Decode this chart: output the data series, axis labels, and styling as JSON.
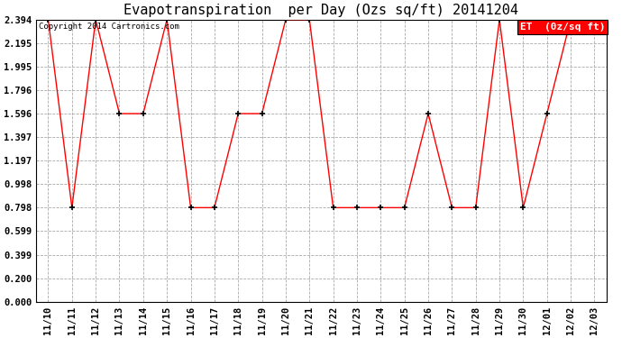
{
  "title": "Evapotranspiration  per Day (Ozs sq/ft) 20141204",
  "copyright": "Copyright 2014 Cartronics.com",
  "legend_label": "ET  (0z/sq ft)",
  "x_labels": [
    "11/10",
    "11/11",
    "11/12",
    "11/13",
    "11/14",
    "11/15",
    "11/16",
    "11/17",
    "11/18",
    "11/19",
    "11/20",
    "11/21",
    "11/22",
    "11/23",
    "11/24",
    "11/25",
    "11/26",
    "11/27",
    "11/28",
    "11/29",
    "11/30",
    "12/01",
    "12/02",
    "12/03"
  ],
  "y_values": [
    2.394,
    0.798,
    2.394,
    1.596,
    1.596,
    2.394,
    0.798,
    0.798,
    1.596,
    1.596,
    2.394,
    2.394,
    0.798,
    0.798,
    0.798,
    0.798,
    1.596,
    0.798,
    0.798,
    2.394,
    0.798,
    1.596,
    2.394,
    2.394
  ],
  "y_ticks": [
    0.0,
    0.2,
    0.399,
    0.599,
    0.798,
    0.998,
    1.197,
    1.397,
    1.596,
    1.796,
    1.995,
    2.195,
    2.394
  ],
  "line_color": "red",
  "marker_color": "black",
  "bg_color": "#ffffff",
  "grid_color": "#aaaaaa",
  "legend_bg": "red",
  "legend_text_color": "white",
  "title_fontsize": 11,
  "copyright_fontsize": 6.5,
  "tick_fontsize": 7.5,
  "legend_fontsize": 8,
  "ylim": [
    0.0,
    2.394
  ]
}
